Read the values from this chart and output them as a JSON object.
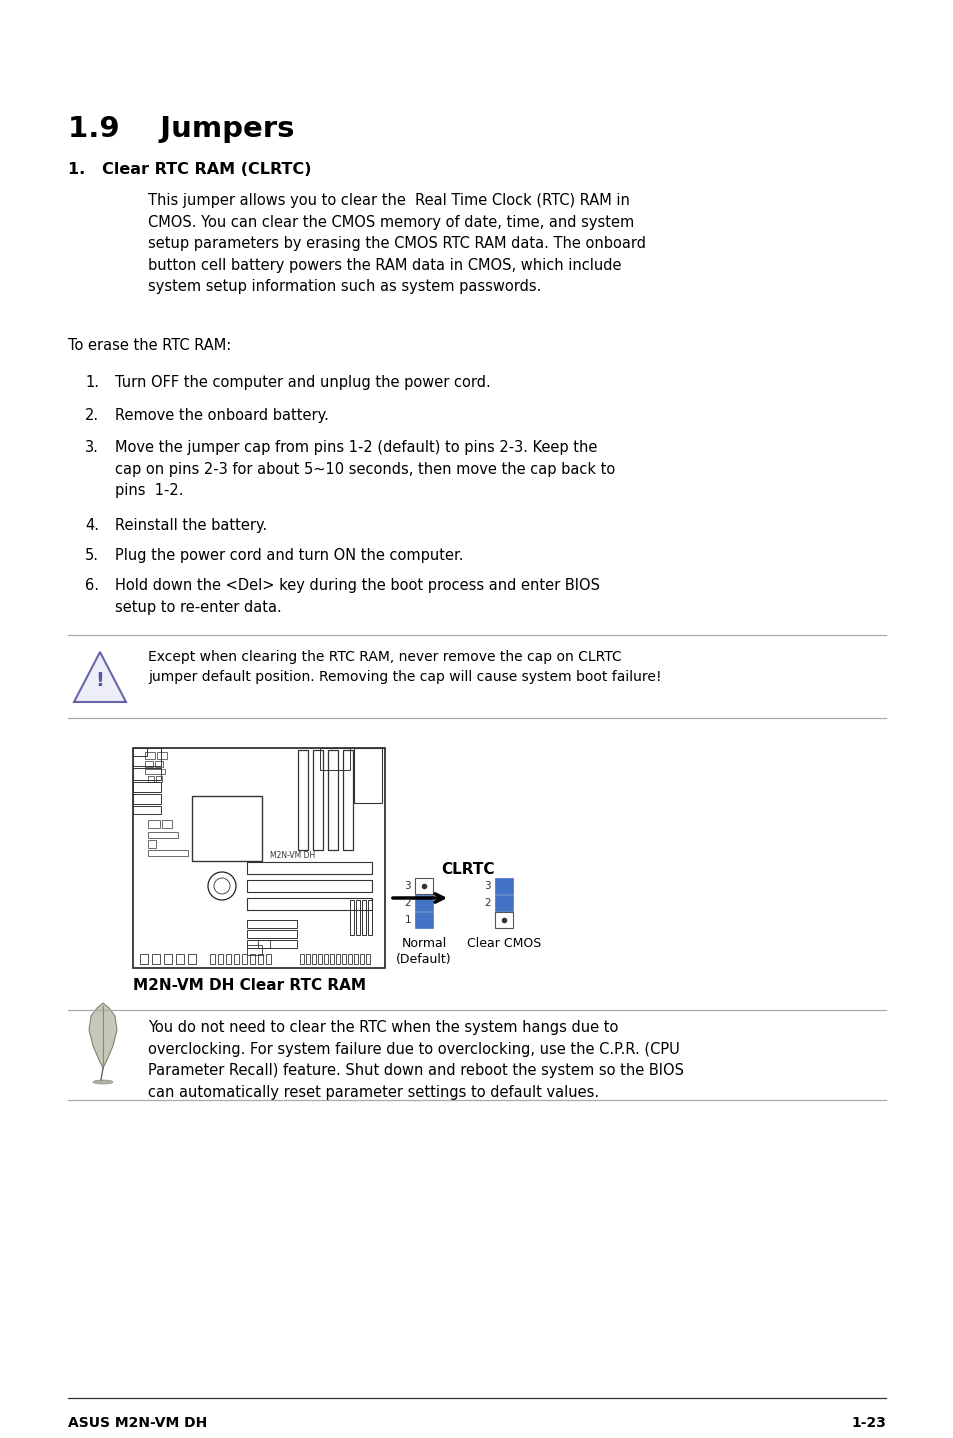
{
  "title": "1.9    Jumpers",
  "section1_title": "1.   Clear RTC RAM (CLRTC)",
  "section1_body": "This jumper allows you to clear the  Real Time Clock (RTC) RAM in\nCMOS. You can clear the CMOS memory of date, time, and system\nsetup parameters by erasing the CMOS RTC RAM data. The onboard\nbutton cell battery powers the RAM data in CMOS, which include\nsystem setup information such as system passwords.",
  "erase_label": "To erase the RTC RAM:",
  "steps": [
    "Turn OFF the computer and unplug the power cord.",
    "Remove the onboard battery.",
    "Move the jumper cap from pins 1-2 (default) to pins 2-3. Keep the\ncap on pins 2-3 for about 5~10 seconds, then move the cap back to\npins  1-2.",
    "Reinstall the battery.",
    "Plug the power cord and turn ON the computer.",
    "Hold down the <Del> key during the boot process and enter BIOS\nsetup to re-enter data."
  ],
  "warning_text": "Except when clearing the RTC RAM, never remove the cap on CLRTC\njumper default position. Removing the cap will cause system boot failure!",
  "diagram_label": "CLRTC",
  "normal_label": "Normal\n(Default)",
  "clear_label": "Clear CMOS",
  "caption": "M2N-VM DH Clear RTC RAM",
  "note_text": "You do not need to clear the RTC when the system hangs due to\noverclocking. For system failure due to overclocking, use the C.P.R. (CPU\nParameter Recall) feature. Shut down and reboot the system so the BIOS\ncan automatically reset parameter settings to default values.",
  "footer_left": "ASUS M2N-VM DH",
  "footer_right": "1-23",
  "bg_color": "#ffffff",
  "text_color": "#000000",
  "blue_color": "#4472c4",
  "line_color": "#aaaaaa",
  "dark_line_color": "#333333"
}
